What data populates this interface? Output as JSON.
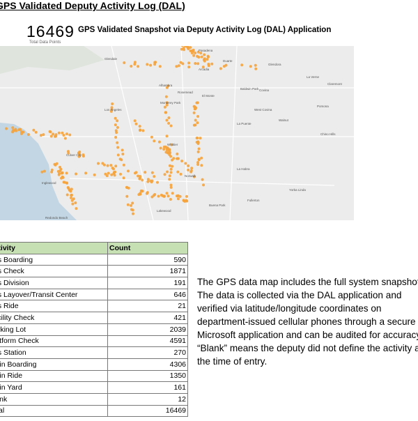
{
  "header": {
    "title": "GPS Validated Deputy Activity Log (DAL)"
  },
  "dashboard": {
    "total": "16469",
    "total_label": "Total Data Points",
    "title": "GPS Validated Snapshot via Deputy Activity Log (DAL) Application",
    "map_labels": [
      "Glendale",
      "Pasadena",
      "Arcadia",
      "Duarte",
      "Glendora",
      "Alhambra",
      "Rosemead",
      "El Monte",
      "Baldwin Park",
      "Covina",
      "La Verne",
      "Claremont",
      "Pomona",
      "Los Angeles",
      "Monterey Park",
      "West Covina",
      "La Puente",
      "Walnut",
      "Chino Hills",
      "Whittier",
      "La Habra",
      "Norwalk",
      "Fullerton",
      "Yorba Linda",
      "Buena Park",
      "Lakewood",
      "Culver City",
      "Inglewood",
      "Redondo Beach"
    ]
  },
  "table": {
    "header": [
      "Activity",
      "Count"
    ],
    "rows": [
      [
        "Bus Boarding",
        "590"
      ],
      [
        "Bus Check",
        "1871"
      ],
      [
        "Bus Division",
        "191"
      ],
      [
        "Bus Layover/Transit Center",
        "646"
      ],
      [
        "Bus Ride",
        "21"
      ],
      [
        "Facility Check",
        "421"
      ],
      [
        "Parking Lot",
        "2039"
      ],
      [
        "Platform Check",
        "4591"
      ],
      [
        "Bus Station",
        "270"
      ],
      [
        "Train Boarding",
        "4306"
      ],
      [
        "Train Ride",
        "1350"
      ],
      [
        "Train Yard",
        "161"
      ],
      [
        "Blank",
        "12"
      ],
      [
        "Total",
        "16469"
      ]
    ]
  },
  "note": "The GPS data map includes the full system snapshot. The data is collected via the DAL application and verified via latitude/longitude coordinates on department-issued cellular phones through a secure Microsoft application and can be audited for accuracy. “Blank” means the deputy did not define the activity at the time of entry."
}
